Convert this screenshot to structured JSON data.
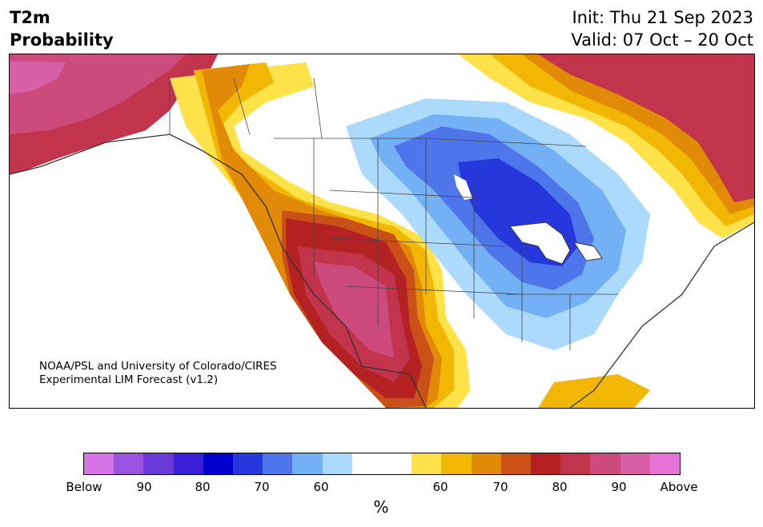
{
  "header": {
    "title_line1": "T2m",
    "title_line2": "Probability",
    "init_text": "Init: Thu 21 Sep 2023",
    "valid_text": "Valid: 07 Oct – 20 Oct"
  },
  "credit": {
    "line1": "NOAA/PSL and University of Colorado/CIRES",
    "line2": "Experimental LIM Forecast (v1.2)"
  },
  "colorbar": {
    "colors": [
      "#d873e8",
      "#9a52e0",
      "#6a3ad8",
      "#3a1fd6",
      "#0000cc",
      "#2638db",
      "#4f75ea",
      "#74b0f4",
      "#acdafc",
      "#ffffff",
      "#ffffff",
      "#ffe24a",
      "#f2b705",
      "#e08a08",
      "#c95117",
      "#b52224",
      "#c2334c",
      "#cc4a7c",
      "#d85ea6",
      "#e573d6"
    ],
    "tick_labels": [
      "Below",
      "90",
      "80",
      "70",
      "60",
      "60",
      "70",
      "80",
      "90",
      "Above"
    ],
    "unit_label": "%"
  },
  "map_colors": {
    "land_background": "#ffffff",
    "coast": "#333333",
    "borders": "#444444"
  }
}
